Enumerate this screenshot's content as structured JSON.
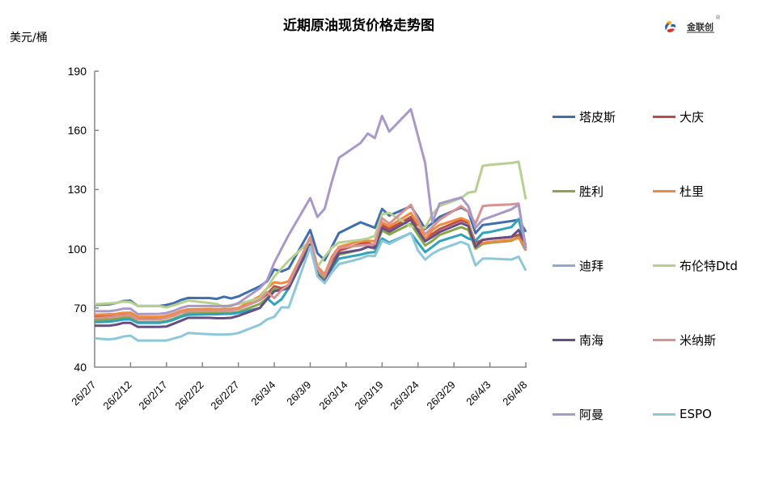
{
  "header": {
    "title": "近期原油现货价格走势图",
    "logo": {
      "name": "金联创",
      "mark": "®"
    }
  },
  "chart_data": {
    "type": "line",
    "title": "近期原油现货价格走势图",
    "xlabel": "",
    "ylabel": "美元/桶",
    "ylim": [
      40,
      190
    ],
    "y_ticks": [
      190,
      160,
      130,
      100,
      70,
      40
    ],
    "xlim": [
      "26/2/7",
      "26/4/8"
    ],
    "x_tick_labels": [
      "26/2/7",
      "26/2/12",
      "26/2/17",
      "26/2/22",
      "26/2/27",
      "26/3/4",
      "26/3/9",
      "26/3/14",
      "26/3/19",
      "26/3/24",
      "26/3/29",
      "26/4/3",
      "26/4/8"
    ],
    "grid": false,
    "legend_position": "right",
    "x": [
      "26/2/7",
      "26/2/9",
      "26/2/10",
      "26/2/11",
      "26/2/12",
      "26/2/13",
      "26/2/16",
      "26/2/17",
      "26/2/18",
      "26/2/19",
      "26/2/20",
      "26/2/23",
      "26/2/24",
      "26/2/25",
      "26/2/26",
      "26/2/27",
      "26/3/2",
      "26/3/3",
      "26/3/4",
      "26/3/5",
      "26/3/6",
      "26/3/9",
      "26/3/10",
      "26/3/11",
      "26/3/12",
      "26/3/13",
      "26/3/16",
      "26/3/17",
      "26/3/18",
      "26/3/19",
      "26/3/20",
      "26/3/23",
      "26/3/24",
      "26/3/25",
      "26/3/26",
      "26/3/27",
      "26/3/30",
      "26/3/31",
      "26/4/1",
      "26/4/2",
      "26/4/3",
      "26/4/6",
      "26/4/7",
      "26/4/8"
    ],
    "series": [
      {
        "name": "塔皮斯",
        "key": "tapis",
        "color": "#3F6FAE",
        "legend_color": "#3F6FAE",
        "values": [
          71.5,
          71.8,
          72.5,
          73.5,
          73.7,
          71.0,
          71.0,
          71.5,
          72.4,
          74.0,
          75.1,
          75.0,
          74.6,
          75.7,
          74.8,
          75.8,
          81.0,
          83.5,
          89.5,
          88.5,
          90.0,
          109.5,
          97.7,
          94.2,
          101.0,
          108.0,
          113.4,
          112.0,
          110.6,
          120.2,
          116.8,
          121.5,
          116.0,
          110.0,
          113.0,
          116.1,
          120.9,
          118.8,
          107.9,
          112.0,
          112.5,
          114.0,
          114.7,
          108.6
        ]
      },
      {
        "name": "大庆",
        "key": "daqing",
        "color": "#BE4B48",
        "legend_color": "#BE4B48",
        "values": [
          65.5,
          65.5,
          66.3,
          67.3,
          67.6,
          65.0,
          65.0,
          65.3,
          66.3,
          68.0,
          69.0,
          69.0,
          68.8,
          69.0,
          69.0,
          69.5,
          74.0,
          77.0,
          81.0,
          80.0,
          81.5,
          104.0,
          90.0,
          86.0,
          94.0,
          99.0,
          102.5,
          103.0,
          101.7,
          112.0,
          110.0,
          116.1,
          110.5,
          105.2,
          107.5,
          110.0,
          114.5,
          113.0,
          103.0,
          104.5,
          105.0,
          106.0,
          107.0,
          101.0
        ]
      },
      {
        "name": "胜利",
        "key": "shengli",
        "color": "#8AA64B",
        "legend_color": "#8AA64B",
        "values": [
          63.8,
          64.0,
          64.5,
          65.0,
          65.0,
          62.8,
          62.8,
          63.4,
          64.5,
          66.0,
          67.3,
          67.5,
          67.3,
          67.5,
          67.5,
          68.0,
          72.0,
          75.0,
          80.0,
          79.0,
          80.0,
          103.0,
          88.0,
          84.5,
          92.0,
          97.0,
          99.5,
          101.0,
          100.0,
          109.3,
          107.2,
          112.7,
          107.0,
          101.7,
          104.0,
          107.0,
          111.0,
          109.5,
          100.0,
          102.5,
          103.0,
          104.0,
          106.0,
          99.0
        ]
      },
      {
        "name": "杜里",
        "key": "duri",
        "color": "#F08A3C",
        "legend_color": "#F08A3C",
        "values": [
          66.5,
          66.8,
          67.0,
          67.6,
          67.6,
          65.5,
          65.5,
          66.0,
          67.0,
          68.5,
          69.3,
          69.5,
          69.3,
          69.5,
          69.5,
          70.0,
          76.0,
          80.0,
          83.0,
          82.5,
          83.5,
          105.0,
          91.0,
          87.0,
          96.0,
          101.0,
          103.8,
          104.0,
          103.8,
          113.4,
          111.3,
          118.1,
          112.5,
          105.0,
          109.5,
          112.0,
          115.5,
          114.0,
          101.5,
          103.0,
          103.5,
          104.5,
          105.5,
          101.0
        ]
      },
      {
        "name": "迪拜",
        "key": "dubai",
        "color": "#2FA3BB",
        "legend_color": "#8EA9D1",
        "values": [
          62.8,
          63.0,
          63.5,
          64.2,
          64.2,
          62.4,
          62.4,
          63.0,
          64.0,
          65.5,
          66.5,
          66.8,
          66.8,
          67.0,
          67.0,
          67.5,
          70.0,
          75.0,
          71.7,
          74.4,
          80.0,
          102.0,
          87.0,
          83.5,
          90.0,
          95.0,
          97.0,
          98.0,
          98.3,
          105.2,
          103.1,
          107.9,
          103.0,
          98.3,
          101.0,
          103.8,
          107.2,
          105.2,
          104.0,
          108.0,
          108.5,
          111.0,
          115.0,
          100.4
        ]
      },
      {
        "name": "布伦特Dtd",
        "key": "brent-dtd",
        "color": "#B7D08F",
        "legend_color": "#B7D08F",
        "values": [
          71.9,
          72.3,
          72.6,
          73.2,
          73.0,
          71.0,
          71.0,
          70.3,
          71.3,
          72.5,
          73.7,
          72.5,
          72.0,
          70.5,
          71.5,
          72.0,
          75.0,
          80.0,
          86.0,
          90.0,
          94.0,
          104.0,
          90.8,
          96.0,
          100.5,
          103.1,
          104.5,
          105.2,
          106.5,
          117.5,
          118.1,
          111.3,
          111.0,
          110.6,
          117.5,
          121.6,
          125.7,
          128.4,
          129.1,
          142.0,
          142.5,
          143.5,
          144.1,
          125.0
        ]
      },
      {
        "name": "南海",
        "key": "nanhai",
        "color": "#664E85",
        "legend_color": "#664E85",
        "values": [
          61.0,
          61.0,
          61.5,
          62.4,
          62.4,
          60.4,
          60.4,
          60.6,
          62.0,
          63.5,
          65.0,
          65.0,
          64.8,
          64.8,
          65.0,
          66.0,
          70.0,
          74.4,
          78.5,
          79.2,
          80.0,
          102.0,
          87.0,
          83.0,
          91.0,
          97.7,
          99.5,
          101.0,
          100.5,
          110.6,
          108.6,
          114.7,
          109.0,
          103.8,
          106.0,
          108.5,
          113.0,
          111.5,
          101.0,
          104.5,
          105.0,
          106.0,
          109.5,
          102.0
        ]
      },
      {
        "name": "米纳斯",
        "key": "minas",
        "color": "#D8928F",
        "legend_color": "#D8928F",
        "values": [
          64.9,
          65.2,
          65.8,
          66.2,
          66.2,
          64.2,
          64.2,
          64.9,
          66.0,
          67.5,
          68.3,
          68.5,
          68.5,
          68.8,
          68.8,
          69.5,
          74.0,
          78.0,
          75.0,
          79.0,
          82.0,
          106.0,
          90.0,
          86.0,
          95.0,
          100.4,
          101.7,
          102.0,
          102.4,
          115.4,
          112.7,
          122.3,
          114.5,
          107.2,
          111.0,
          114.7,
          121.6,
          118.8,
          112.7,
          121.6,
          122.0,
          122.5,
          122.9,
          99.0
        ]
      },
      {
        "name": "阿曼",
        "key": "oman",
        "color": "#A999C8",
        "legend_color": "#A999C8",
        "values": [
          68.3,
          68.3,
          68.8,
          69.6,
          69.6,
          66.9,
          67.0,
          67.4,
          68.5,
          70.0,
          71.0,
          71.0,
          70.8,
          71.0,
          71.0,
          72.5,
          80.0,
          84.0,
          93.0,
          100.0,
          107.0,
          125.7,
          116.1,
          120.2,
          134.0,
          146.1,
          153.6,
          158.4,
          156.1,
          167.3,
          159.4,
          170.7,
          157.0,
          143.4,
          113.4,
          122.9,
          126.0,
          121.6,
          110.6,
          114.7,
          116.0,
          120.0,
          122.3,
          100.4
        ]
      },
      {
        "name": "ESPO",
        "key": "espo",
        "color": "#8CC8DA",
        "legend_color": "#8CC8DA",
        "values": [
          54.6,
          54.0,
          54.5,
          55.5,
          56.0,
          53.5,
          53.5,
          53.5,
          54.5,
          55.5,
          57.3,
          56.7,
          56.5,
          56.5,
          56.7,
          57.3,
          61.5,
          64.2,
          65.5,
          70.3,
          70.3,
          101.0,
          86.0,
          82.6,
          88.0,
          92.2,
          95.0,
          96.5,
          96.3,
          104.0,
          102.5,
          108.0,
          99.0,
          94.5,
          97.5,
          99.5,
          103.5,
          102.0,
          91.5,
          95.0,
          95.0,
          94.5,
          96.0,
          89.0
        ]
      }
    ]
  }
}
